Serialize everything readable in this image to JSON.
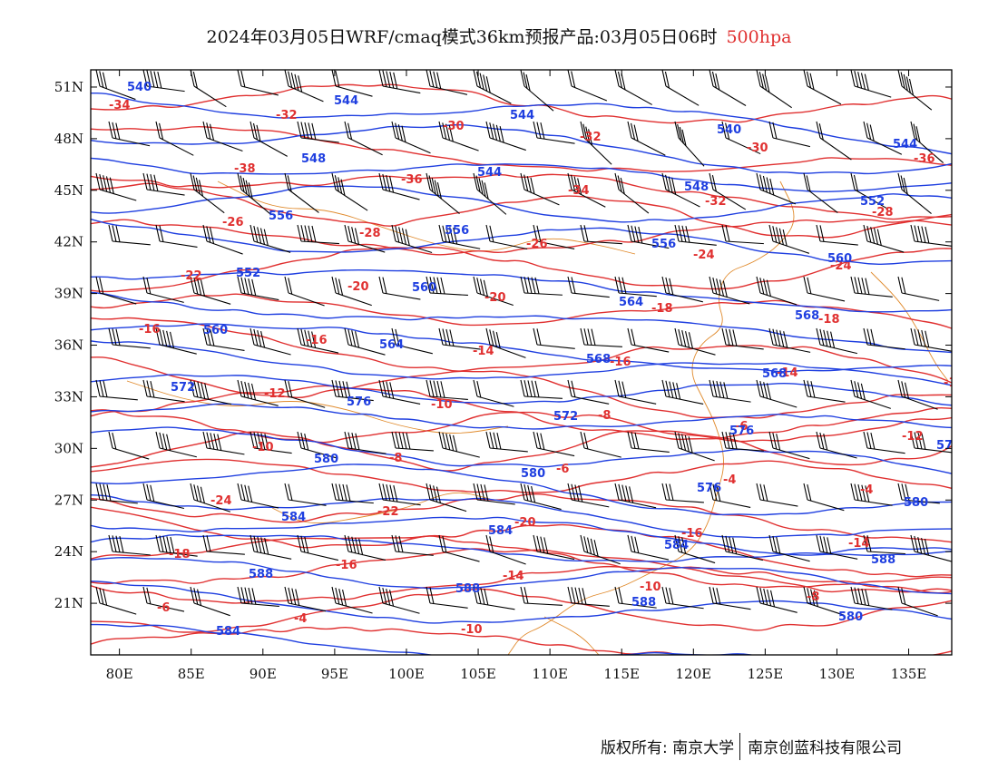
{
  "title": {
    "main": "2024年03月05日WRF/cmaq模式36km预报产品:03月05日06时",
    "level": "500hpa"
  },
  "colors": {
    "temperature": "#e03030",
    "height": "#1f3fe0",
    "coast": "#e08a2c",
    "wind": "#000000"
  },
  "axes": {
    "lon": {
      "min": 78,
      "max": 138,
      "ticks": [
        80,
        85,
        90,
        95,
        100,
        105,
        110,
        115,
        120,
        125,
        130,
        135
      ],
      "labels": [
        "80E",
        "85E",
        "90E",
        "95E",
        "100E",
        "105E",
        "110E",
        "115E",
        "120E",
        "125E",
        "130E",
        "135E"
      ]
    },
    "lat": {
      "min": 18,
      "max": 52,
      "ticks": [
        51,
        48,
        45,
        42,
        39,
        36,
        33,
        30,
        27,
        24,
        21
      ],
      "labels": [
        "51N",
        "48N",
        "45N",
        "42N",
        "39N",
        "36N",
        "33N",
        "30N",
        "27N",
        "24N",
        "21N"
      ]
    }
  },
  "temperature_labels": [
    "-34",
    "-32",
    "-30",
    "-32",
    "-30",
    "-36",
    "-38",
    "-36",
    "-34",
    "-32",
    "-28",
    "-26",
    "-28",
    "-26",
    "-24",
    "-24",
    "-22",
    "-20",
    "-20",
    "-18",
    "-18",
    "-16",
    "-16",
    "-14",
    "-16",
    "-14",
    "-12",
    "-12",
    "-10",
    "-8",
    "-6",
    "-12",
    "-10",
    "-8",
    "-6",
    "-4",
    "-4",
    "-24",
    "-22",
    "-20",
    "-16",
    "-14",
    "-18",
    "-16",
    "-14",
    "-10",
    "-8",
    "-6",
    "-4",
    "-10"
  ],
  "height_labels": [
    "540",
    "544",
    "544",
    "540",
    "544",
    "548",
    "544",
    "548",
    "552",
    "556",
    "556",
    "556",
    "560",
    "552",
    "560",
    "564",
    "568",
    "560",
    "564",
    "568",
    "568",
    "572",
    "576",
    "572",
    "576",
    "576",
    "580",
    "580",
    "576",
    "580",
    "584",
    "584",
    "584",
    "588",
    "588",
    "588",
    "588",
    "580",
    "584"
  ],
  "footer": {
    "left": "版权所有: 南京大学",
    "right": "南京创蓝科技有限公司"
  }
}
